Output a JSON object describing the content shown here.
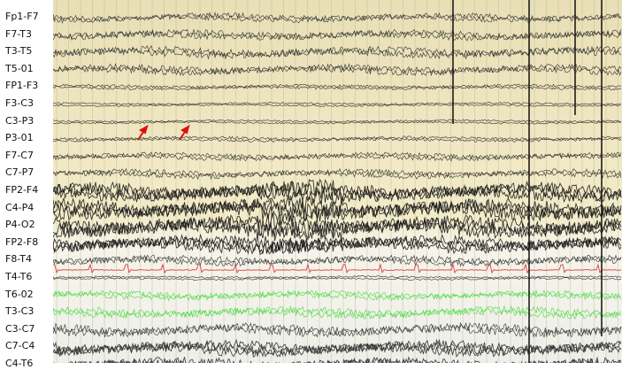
{
  "channels": [
    "Fp1-F7",
    "F7-T3",
    "T3-T5",
    "T5-01",
    "FP1-F3",
    "F3-C3",
    "C3-P3",
    "P3-01",
    "F7-C7",
    "C7-P7",
    "FP2-F4",
    "C4-P4",
    "P4-O2",
    "FP2-F8",
    "F8-T4",
    "T4-T6",
    "T6-02",
    "T3-C3",
    "C3-C7",
    "C7-C4",
    "C4-T6"
  ]
}
